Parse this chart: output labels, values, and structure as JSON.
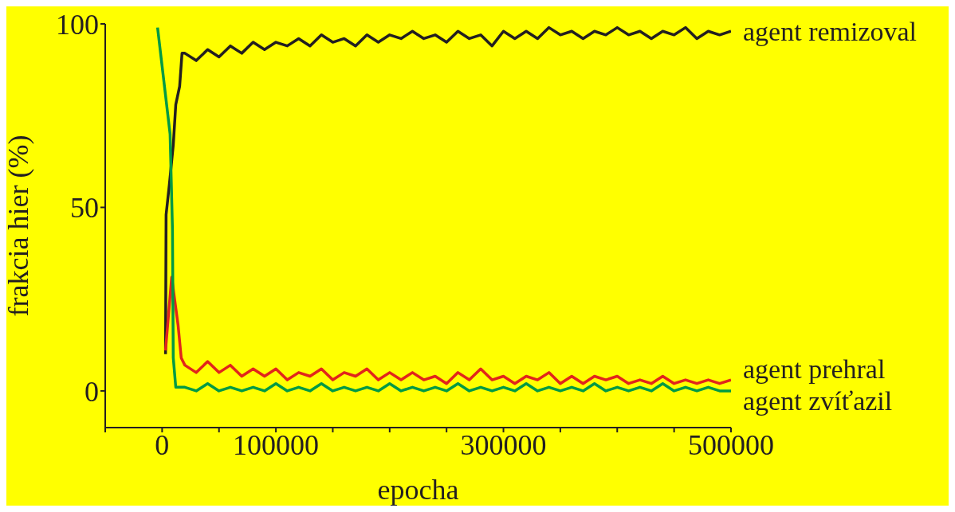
{
  "chart_data": {
    "type": "line",
    "xlabel": "epocha",
    "ylabel": "frakcia hier (%)",
    "xlim": [
      -50000,
      500000
    ],
    "ylim": [
      -10,
      100
    ],
    "xticks": [
      {
        "value": -50000,
        "label": null
      },
      0,
      {
        "value": 50000,
        "label": null
      },
      100000,
      {
        "value": 150000,
        "label": null
      },
      {
        "value": 200000,
        "label": null
      },
      {
        "value": 250000,
        "label": null
      },
      300000,
      {
        "value": 350000,
        "label": null
      },
      {
        "value": 400000,
        "label": null
      },
      {
        "value": 450000,
        "label": null
      },
      500000
    ],
    "yticks": [
      0,
      50,
      100
    ],
    "series": [
      {
        "name": "agent remizoval",
        "color": "#231f20",
        "x": [
          3000,
          3500,
          6300,
          9800,
          12000,
          15400,
          17500,
          20000,
          30000,
          40000,
          50000,
          60000,
          70000,
          80000,
          90000,
          100000,
          110000,
          120000,
          130000,
          140000,
          150000,
          160000,
          170000,
          180000,
          190000,
          200000,
          210000,
          220000,
          230000,
          240000,
          250000,
          260000,
          270000,
          280000,
          290000,
          300000,
          310000,
          320000,
          330000,
          340000,
          350000,
          360000,
          370000,
          380000,
          390000,
          400000,
          410000,
          420000,
          430000,
          440000,
          450000,
          460000,
          470000,
          480000,
          490000,
          500000
        ],
        "values": [
          10,
          48,
          56,
          67,
          78,
          83,
          92,
          92,
          90,
          93,
          91,
          94,
          92,
          95,
          93,
          95,
          94,
          96,
          94,
          97,
          95,
          96,
          94,
          97,
          95,
          97,
          96,
          98,
          96,
          97,
          95,
          98,
          96,
          97,
          94,
          98,
          96,
          98,
          96,
          99,
          97,
          98,
          96,
          98,
          97,
          99,
          97,
          98,
          96,
          98,
          97,
          99,
          96,
          98,
          97,
          98
        ]
      },
      {
        "name": "agent prehral",
        "color": "#e1251b",
        "x": [
          3000,
          8400,
          14000,
          16800,
          20000,
          30000,
          40000,
          50000,
          60000,
          70000,
          80000,
          90000,
          100000,
          110000,
          120000,
          130000,
          140000,
          150000,
          160000,
          170000,
          180000,
          190000,
          200000,
          210000,
          220000,
          230000,
          240000,
          250000,
          260000,
          270000,
          280000,
          290000,
          300000,
          310000,
          320000,
          330000,
          340000,
          350000,
          360000,
          370000,
          380000,
          390000,
          400000,
          410000,
          420000,
          430000,
          440000,
          450000,
          460000,
          470000,
          480000,
          490000,
          500000
        ],
        "values": [
          11,
          31,
          18,
          9,
          7,
          5,
          8,
          5,
          7,
          4,
          6,
          4,
          6,
          3,
          5,
          4,
          6,
          3,
          5,
          4,
          6,
          3,
          5,
          3,
          5,
          3,
          4,
          2,
          5,
          3,
          6,
          3,
          4,
          2,
          4,
          3,
          5,
          2,
          4,
          2,
          4,
          3,
          4,
          2,
          3,
          2,
          4,
          2,
          3,
          2,
          3,
          2,
          3
        ]
      },
      {
        "name": "agent zvíťazil",
        "color": "#009a44",
        "x": [
          -4000,
          7000,
          9100,
          9800,
          12000,
          20000,
          30000,
          40000,
          50000,
          60000,
          70000,
          80000,
          90000,
          100000,
          110000,
          120000,
          130000,
          140000,
          150000,
          160000,
          170000,
          180000,
          190000,
          200000,
          210000,
          220000,
          230000,
          240000,
          250000,
          260000,
          270000,
          280000,
          290000,
          300000,
          310000,
          320000,
          330000,
          340000,
          350000,
          360000,
          370000,
          380000,
          390000,
          400000,
          410000,
          420000,
          430000,
          440000,
          450000,
          460000,
          470000,
          480000,
          490000,
          500000
        ],
        "values": [
          99,
          70,
          44,
          9,
          1,
          1,
          0,
          2,
          0,
          1,
          0,
          1,
          0,
          2,
          0,
          1,
          0,
          2,
          0,
          1,
          0,
          1,
          0,
          2,
          0,
          1,
          0,
          1,
          0,
          2,
          0,
          1,
          0,
          1,
          0,
          2,
          0,
          1,
          0,
          1,
          0,
          2,
          0,
          1,
          0,
          1,
          0,
          2,
          0,
          1,
          0,
          1,
          0,
          0
        ]
      }
    ]
  }
}
